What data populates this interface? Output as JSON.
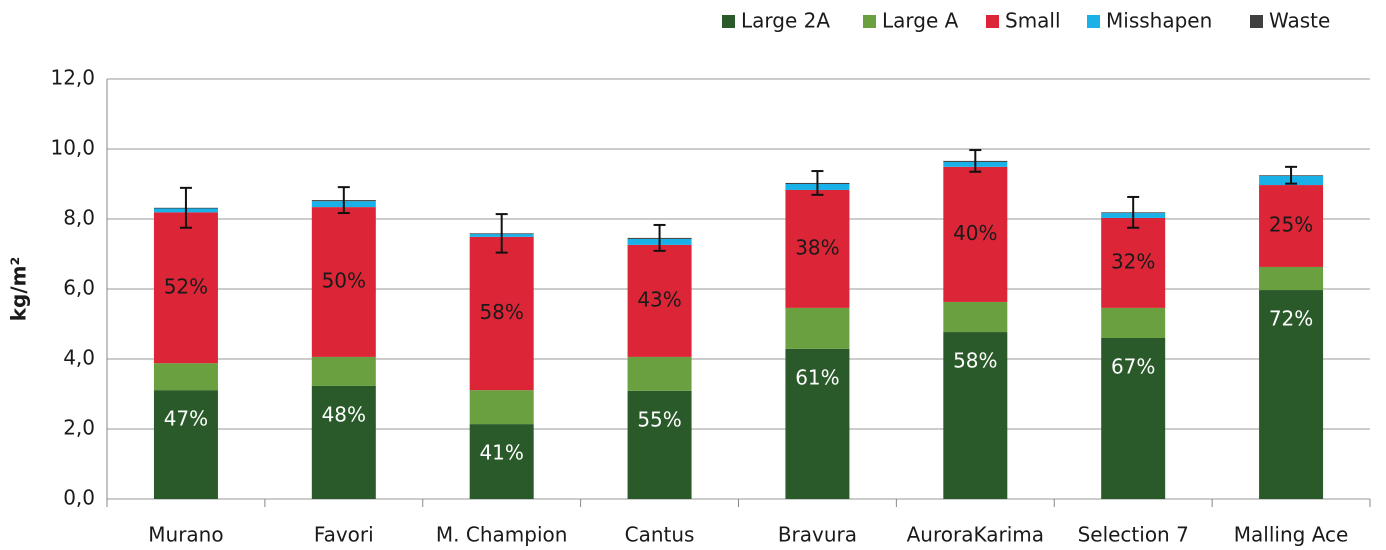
{
  "chart_data": {
    "type": "stacked_bar",
    "y_label": "kg/m²",
    "categories": [
      "Murano",
      "Favori",
      "M. Champion",
      "Cantus",
      "Bravura",
      "AuroraKarima",
      "Selection 7",
      "Malling Ace"
    ],
    "series": [
      {
        "name": "Large 2A",
        "color": "#2a5a2a",
        "values": [
          3.11,
          3.23,
          2.14,
          3.09,
          4.29,
          4.77,
          4.6,
          5.97
        ],
        "segment_labels": [
          "47%",
          "48%",
          "41%",
          "55%",
          "61%",
          "58%",
          "67%",
          "72%"
        ],
        "label_color": "#ffffff"
      },
      {
        "name": "Large A",
        "color": "#6aa040",
        "values": [
          0.77,
          0.83,
          0.97,
          0.97,
          1.17,
          0.86,
          0.86,
          0.66
        ]
      },
      {
        "name": "Small",
        "color": "#dc2637",
        "values": [
          4.31,
          4.28,
          4.38,
          3.2,
          3.37,
          3.86,
          2.57,
          2.34
        ],
        "segment_labels": [
          "52%",
          "50%",
          "58%",
          "43%",
          "38%",
          "40%",
          "32%",
          "25%"
        ],
        "label_color": "#1a1a1a"
      },
      {
        "name": "Misshapen",
        "color": "#1ab0e8",
        "values": [
          0.11,
          0.17,
          0.08,
          0.17,
          0.17,
          0.14,
          0.14,
          0.26
        ]
      },
      {
        "name": "Waste",
        "color": "#404040",
        "values": [
          0.02,
          0.03,
          0.02,
          0.03,
          0.03,
          0.03,
          0.02,
          0.02
        ]
      }
    ],
    "errors": [
      0.57,
      0.37,
      0.55,
      0.37,
      0.34,
      0.31,
      0.44,
      0.24
    ],
    "ylim": [
      0,
      12
    ],
    "yticks": [
      {
        "value": 0,
        "label": "0,0"
      },
      {
        "value": 2,
        "label": "2,0"
      },
      {
        "value": 4,
        "label": "4,0"
      },
      {
        "value": 6,
        "label": "6,0"
      },
      {
        "value": 8,
        "label": "8,0"
      },
      {
        "value": 10,
        "label": "10,0"
      },
      {
        "value": 12,
        "label": "12,0"
      }
    ],
    "grid": true,
    "legend": "top-right"
  }
}
